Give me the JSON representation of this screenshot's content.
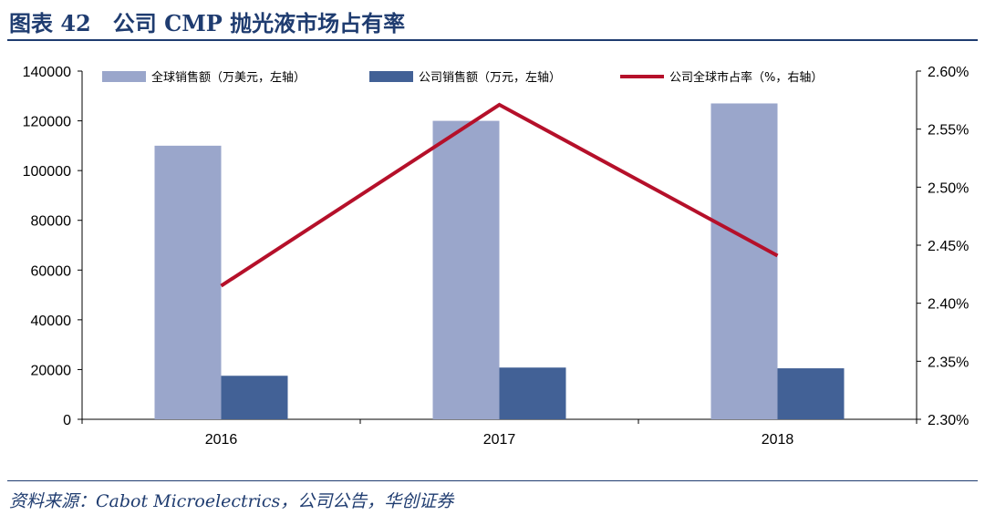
{
  "figure": {
    "title": "图表 42　公司 CMP 抛光液市场占有率",
    "source": "资料来源：Cabot Microelectrics，公司公告，华创证券"
  },
  "chart_data": {
    "type": "bar",
    "categories": [
      "2016",
      "2017",
      "2018"
    ],
    "series": [
      {
        "name": "全球销售额（万美元，左轴）",
        "kind": "bar",
        "axis": "left",
        "color": "#9aa6cb",
        "values": [
          110000,
          120000,
          127000
        ]
      },
      {
        "name": "公司销售额（万元，左轴）",
        "kind": "bar",
        "axis": "left",
        "color": "#426196",
        "values": [
          17500,
          20800,
          20500
        ]
      },
      {
        "name": "公司全球市占率（%，右轴）",
        "kind": "line",
        "axis": "right",
        "color": "#b5102a",
        "values": [
          2.415,
          2.571,
          2.441
        ]
      }
    ],
    "left_axis": {
      "min": 0,
      "max": 140000,
      "ticks": [
        "0",
        "20000",
        "40000",
        "60000",
        "80000",
        "100000",
        "120000",
        "140000"
      ]
    },
    "right_axis": {
      "min": 2.3,
      "max": 2.6,
      "ticks": [
        "2.30%",
        "2.35%",
        "2.40%",
        "2.45%",
        "2.50%",
        "2.55%",
        "2.60%"
      ]
    },
    "legend_position": "top",
    "grid": false
  }
}
